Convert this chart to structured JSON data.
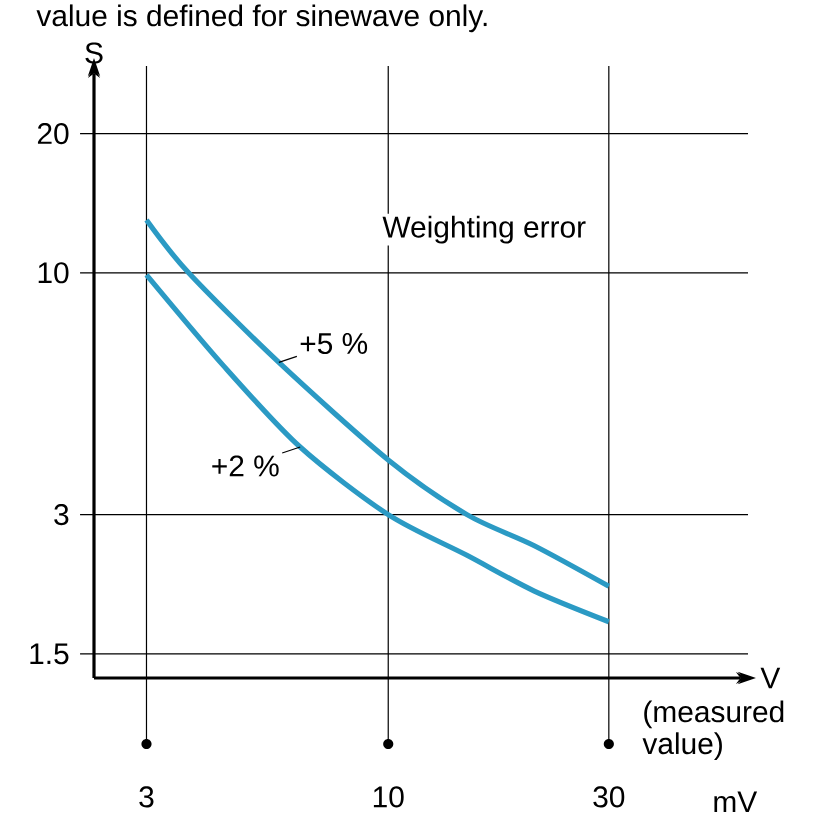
{
  "chart_data": {
    "type": "line",
    "xlabel": "V",
    "ylabel": "S",
    "log": "xy",
    "grid": true,
    "xlim": [
      2.31,
      60
    ],
    "ylim": [
      1.33,
      28
    ],
    "xticks": [
      3,
      10,
      30
    ],
    "yticks": [
      1.5,
      3,
      10,
      20
    ],
    "annotations": [
      "value is defined for sinewave only.",
      "Weighting error",
      "(measured value)",
      "mV"
    ],
    "series": [
      {
        "name": "+5 %",
        "color": "#2b9ac4",
        "x": [
          3,
          3.7,
          5.8,
          10,
          14.8,
          20.7,
          30
        ],
        "values": [
          13.0,
          10,
          6.4,
          3.94,
          3.0,
          2.57,
          2.1
        ]
      },
      {
        "name": "+2 %",
        "color": "#2b9ac4",
        "x": [
          3,
          4.4,
          6.45,
          10,
          14.8,
          20.7,
          30
        ],
        "values": [
          9.9,
          6.3,
          4.2,
          3.0,
          2.45,
          2.05,
          1.76
        ]
      }
    ]
  }
}
